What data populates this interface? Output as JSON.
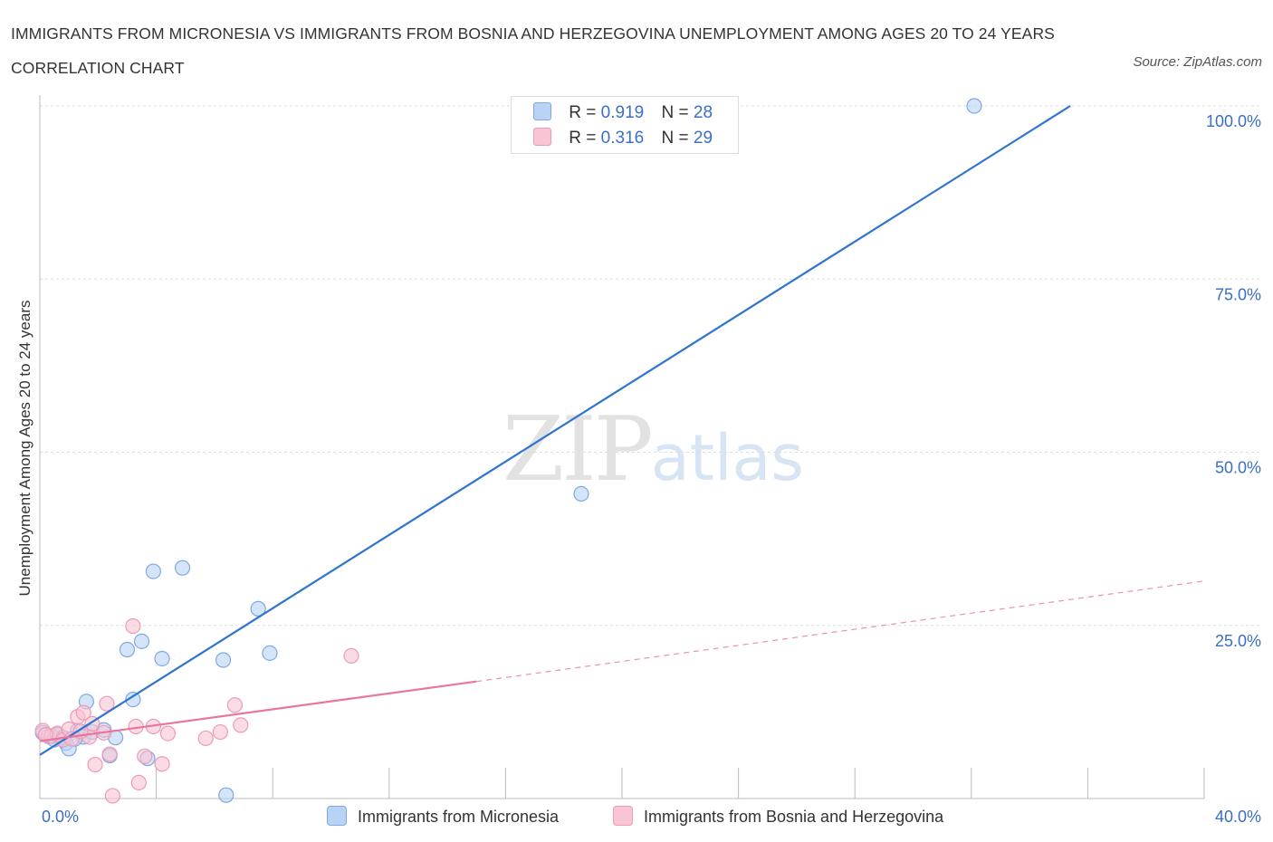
{
  "title": "IMMIGRANTS FROM MICRONESIA VS IMMIGRANTS FROM BOSNIA AND HERZEGOVINA UNEMPLOYMENT AMONG AGES 20 TO 24 YEARS CORRELATION CHART",
  "source": "Source: ZipAtlas.com",
  "watermark": {
    "zip": "ZIP",
    "atlas": "atlas"
  },
  "legend_top": [
    {
      "r_label": "R =",
      "r_value": "0.919",
      "n_label": "N =",
      "n_value": "28"
    },
    {
      "r_label": "R =",
      "r_value": "0.316",
      "n_label": "N =",
      "n_value": "29"
    }
  ],
  "colors": {
    "blue_line": "#2e74d0",
    "blue_fill": "#b8d3f5",
    "blue_stroke": "#7ea9e0",
    "pink_line": "#e8769f",
    "pink_fill": "#f9c4d4",
    "pink_stroke": "#ef9ab5",
    "grid": "#dddddd",
    "tick_label": "#3a6fc4"
  },
  "chart_data": {
    "type": "scatter",
    "title": "IMMIGRANTS FROM MICRONESIA VS IMMIGRANTS FROM BOSNIA AND HERZEGOVINA UNEMPLOYMENT AMONG AGES 20 TO 24 YEARS CORRELATION CHART",
    "xlabel": "",
    "ylabel": "Unemployment Among Ages 20 to 24 years",
    "xlim": [
      0,
      40
    ],
    "ylim": [
      0,
      102
    ],
    "x_tick_labels": [
      "0.0%",
      "40.0%"
    ],
    "y_ticks": [
      25,
      50,
      75,
      100
    ],
    "y_tick_labels": [
      "25.0%",
      "50.0%",
      "75.0%",
      "100.0%"
    ],
    "grid": true,
    "legend_position": "bottom",
    "series": [
      {
        "name": "Immigrants from Micronesia",
        "color": "#2e74d0",
        "points": [
          [
            0.1,
            9.5
          ],
          [
            0.3,
            9.0
          ],
          [
            0.5,
            8.5
          ],
          [
            0.6,
            9.2
          ],
          [
            0.8,
            8.8
          ],
          [
            0.9,
            8.0
          ],
          [
            1.0,
            7.2
          ],
          [
            1.3,
            9.8
          ],
          [
            1.5,
            8.9
          ],
          [
            1.6,
            14.0
          ],
          [
            1.8,
            9.6
          ],
          [
            2.2,
            9.9
          ],
          [
            2.4,
            6.2
          ],
          [
            2.6,
            8.8
          ],
          [
            3.0,
            21.5
          ],
          [
            3.2,
            14.3
          ],
          [
            3.5,
            22.7
          ],
          [
            3.7,
            5.8
          ],
          [
            3.9,
            32.8
          ],
          [
            4.2,
            20.2
          ],
          [
            4.9,
            33.3
          ],
          [
            6.3,
            20.0
          ],
          [
            6.4,
            0.5
          ],
          [
            7.5,
            27.4
          ],
          [
            7.9,
            21.0
          ],
          [
            18.6,
            44.0
          ],
          [
            32.1,
            100.0
          ],
          [
            1.2,
            8.6
          ]
        ],
        "trend": {
          "x": [
            0,
            35.4
          ],
          "y": [
            6.3,
            100.0
          ],
          "r": "0.919",
          "n": "28"
        }
      },
      {
        "name": "Immigrants from Bosnia and Herzegovina",
        "color": "#e8769f",
        "points": [
          [
            0.1,
            9.8
          ],
          [
            0.4,
            9.0
          ],
          [
            0.6,
            9.4
          ],
          [
            0.8,
            8.5
          ],
          [
            1.0,
            10.0
          ],
          [
            1.1,
            8.6
          ],
          [
            1.3,
            11.8
          ],
          [
            1.5,
            12.4
          ],
          [
            1.7,
            8.9
          ],
          [
            1.8,
            10.8
          ],
          [
            1.9,
            4.9
          ],
          [
            2.2,
            9.5
          ],
          [
            2.3,
            13.7
          ],
          [
            2.4,
            6.4
          ],
          [
            2.5,
            0.4
          ],
          [
            3.2,
            24.9
          ],
          [
            3.3,
            10.4
          ],
          [
            3.4,
            2.3
          ],
          [
            3.6,
            6.1
          ],
          [
            3.9,
            10.4
          ],
          [
            4.2,
            5.0
          ],
          [
            4.4,
            9.4
          ],
          [
            5.7,
            8.7
          ],
          [
            6.2,
            9.6
          ],
          [
            6.7,
            13.5
          ],
          [
            6.9,
            10.6
          ],
          [
            10.7,
            20.6
          ],
          [
            0.2,
            9.2
          ],
          [
            1.4,
            9.7
          ]
        ],
        "trend": {
          "x": [
            0,
            15.0
          ],
          "y": [
            8.3,
            16.9
          ],
          "r": "0.316",
          "n": "29"
        },
        "trend_dashed": {
          "x": [
            15.0,
            40.0
          ],
          "y": [
            16.9,
            31.4
          ]
        }
      }
    ]
  },
  "legend_bottom": [
    "Immigrants from Micronesia",
    "Immigrants from Bosnia and Herzegovina"
  ]
}
